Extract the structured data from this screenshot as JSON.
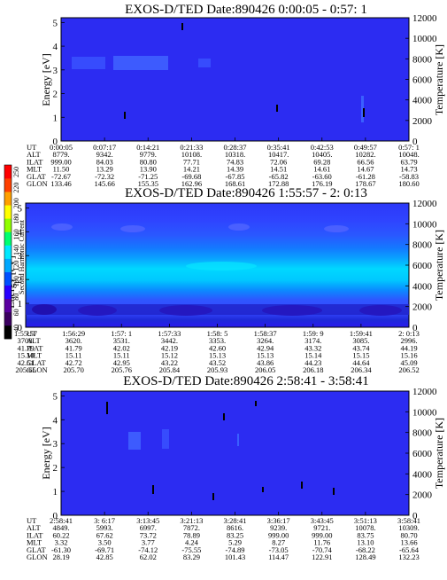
{
  "chart_data": [
    {
      "type": "heatmap",
      "title": "EXOS-D/TED   Date:890426  0:00:05 - 0:57: 1",
      "ylabel_left": "Energy [eV]",
      "ylabel_right": "Temperature [K]",
      "y_ticks_left": [
        "0",
        "1",
        "2",
        "3",
        "4",
        "5"
      ],
      "y_ticks_right": [
        "0",
        "2000",
        "4000",
        "6000",
        "8000",
        "10000",
        "12000"
      ],
      "ylim_left": [
        0,
        5.2
      ],
      "ylim_right": [
        0,
        12000
      ],
      "orbit_table": {
        "row_labels": [
          "UT",
          "ALT",
          "ILAT",
          "MLT",
          "GLAT",
          "GLON"
        ],
        "columns": [
          [
            "0:00:05",
            "8779.",
            "999.00",
            "11.50",
            "-72.67",
            "133.46"
          ],
          [
            "0:07:17",
            "9342.",
            "84.03",
            "13.29",
            "-72.32",
            "145.66"
          ],
          [
            "0:14:21",
            "9779.",
            "80.80",
            "13.90",
            "-71.25",
            "155.35"
          ],
          [
            "0:21:33",
            "10108.",
            "77.71",
            "14.21",
            "-69.68",
            "162.96"
          ],
          [
            "0:28:37",
            "10318.",
            "74.83",
            "14.39",
            "-67.85",
            "168.61"
          ],
          [
            "0:35:41",
            "10417.",
            "72.06",
            "14.51",
            "-65.82",
            "172.88"
          ],
          [
            "0:42:53",
            "10405.",
            "69.28",
            "14.61",
            "-63.60",
            "176.19"
          ],
          [
            "0:49:57",
            "10282.",
            "66.56",
            "14.67",
            "-61.28",
            "178.67"
          ],
          [
            "0:57: 1",
            "10048.",
            "63.79",
            "14.73",
            "-58.83",
            "180.60"
          ]
        ]
      }
    },
    {
      "type": "heatmap",
      "title": "EXOS-D/TED   Date:890426  1:55:57 - 2: 0:13",
      "ylabel_left": "Energy [eV]",
      "ylabel_right": "Temperature [K]",
      "y_ticks_left": [
        "0",
        "1",
        "2",
        "3",
        "4",
        "5"
      ],
      "y_ticks_right": [
        "0",
        "2000",
        "4000",
        "6000",
        "8000",
        "10000",
        "12000"
      ],
      "ylim_left": [
        0,
        5.2
      ],
      "ylim_right": [
        0,
        12000
      ],
      "orbit_table": {
        "row_labels": [
          "UT",
          "ALT",
          "ILAT",
          "MLT",
          "GLAT",
          "GLON"
        ],
        "columns": [
          [
            "1:55:57",
            "3708.",
            "41.79",
            "15.10",
            "42.51",
            "205.65"
          ],
          [
            "1:56:29",
            "3620.",
            "41.79",
            "15.11",
            "42.72",
            "205.70"
          ],
          [
            "1:57: 1",
            "3531.",
            "42.02",
            "15.11",
            "42.95",
            "205.76"
          ],
          [
            "1:57:33",
            "3442.",
            "42.19",
            "15.12",
            "43.22",
            "205.84"
          ],
          [
            "1:58: 5",
            "3353.",
            "42.60",
            "15.13",
            "43.52",
            "205.93"
          ],
          [
            "1:58:37",
            "3264.",
            "42.94",
            "15.13",
            "43.86",
            "206.05"
          ],
          [
            "1:59: 9",
            "3174.",
            "43.32",
            "15.14",
            "44.23",
            "206.18"
          ],
          [
            "1:59:41",
            "3085.",
            "43.74",
            "15.15",
            "44.64",
            "206.34"
          ],
          [
            "2: 0:13",
            "2996.",
            "44.19",
            "15.16",
            "45.09",
            "206.52"
          ]
        ]
      },
      "colorbar": {
        "label": "Second Harmonic Current",
        "ticks": [
          "40",
          "60",
          "80",
          "100",
          "120",
          "140",
          "160",
          "180",
          "200",
          "220",
          "250"
        ],
        "colors": [
          "#000000",
          "#3b0060",
          "#5a00a0",
          "#2800ff",
          "#0050ff",
          "#00a8ff",
          "#00e8ff",
          "#00ff70",
          "#90ff00",
          "#ffff00",
          "#ffa000",
          "#ff4000",
          "#ff0000"
        ]
      }
    },
    {
      "type": "heatmap",
      "title": "EXOS-D/TED   Date:890426  2:58:41 - 3:58:41",
      "ylabel_left": "Energy [eV]",
      "ylabel_right": "Temperature [K]",
      "y_ticks_left": [
        "0",
        "1",
        "2",
        "3",
        "4",
        "5"
      ],
      "y_ticks_right": [
        "0",
        "2000",
        "4000",
        "6000",
        "8000",
        "10000",
        "12000"
      ],
      "ylim_left": [
        0,
        5.2
      ],
      "ylim_right": [
        0,
        12000
      ],
      "orbit_table": {
        "row_labels": [
          "UT",
          "ALT",
          "ILAT",
          "MLT",
          "GLAT",
          "GLON"
        ],
        "columns": [
          [
            "2:58:41",
            "4849.",
            "60.22",
            "3.32",
            "-61.30",
            "28.19"
          ],
          [
            "3: 6:17",
            "5993.",
            "67.62",
            "3.50",
            "-69.71",
            "42.85"
          ],
          [
            "3:13:45",
            "6997.",
            "73.72",
            "3.77",
            "-74.12",
            "62.02"
          ],
          [
            "3:21:13",
            "7872.",
            "78.89",
            "4.24",
            "-75.55",
            "83.29"
          ],
          [
            "3:28:41",
            "8616.",
            "83.25",
            "5.29",
            "-74.89",
            "101.43"
          ],
          [
            "3:36:17",
            "9239.",
            "999.00",
            "8.27",
            "-73.05",
            "114.47"
          ],
          [
            "3:43:45",
            "9721.",
            "999.00",
            "11.76",
            "-70.74",
            "122.91"
          ],
          [
            "3:51:13",
            "10078.",
            "83.75",
            "13.10",
            "-68.22",
            "128.49"
          ],
          [
            "3:58:41",
            "10309.",
            "80.70",
            "13.66",
            "-65.64",
            "132.23"
          ]
        ]
      }
    }
  ]
}
